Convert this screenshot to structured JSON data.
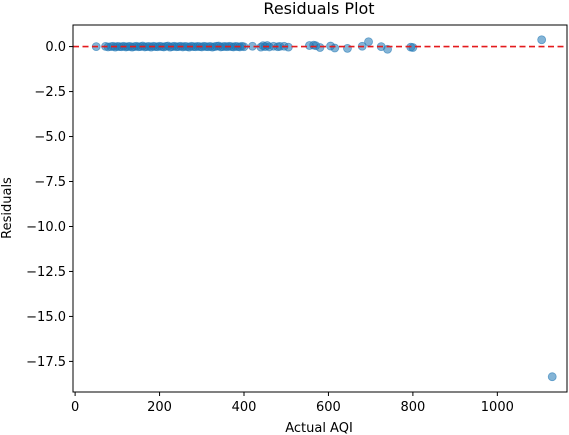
{
  "chart_data": {
    "type": "scatter",
    "title": "Residuals Plot",
    "xlabel": "Actual AQI",
    "ylabel": "Residuals",
    "xlim": [
      -5,
      1165
    ],
    "ylim": [
      -19.2,
      1.2
    ],
    "x_ticks": [
      {
        "value": 0,
        "label": "0"
      },
      {
        "value": 200,
        "label": "200"
      },
      {
        "value": 400,
        "label": "400"
      },
      {
        "value": 600,
        "label": "600"
      },
      {
        "value": 800,
        "label": "800"
      },
      {
        "value": 1000,
        "label": "1000"
      }
    ],
    "y_ticks": [
      {
        "value": 0,
        "label": "0.0"
      },
      {
        "value": -2.5,
        "label": "−2.5"
      },
      {
        "value": -5,
        "label": "−5.0"
      },
      {
        "value": -7.5,
        "label": "−7.5"
      },
      {
        "value": -10,
        "label": "−10.0"
      },
      {
        "value": -12.5,
        "label": "−12.5"
      },
      {
        "value": -15,
        "label": "−15.0"
      },
      {
        "value": -17.5,
        "label": "−17.5"
      }
    ],
    "reference_line": {
      "y": 0,
      "color": "#e41a1c",
      "style": "dashed"
    },
    "grid": false,
    "point_color": "#1f77b4",
    "points": [
      [
        50,
        0.0
      ],
      [
        72,
        0.01
      ],
      [
        78,
        -0.02
      ],
      [
        85,
        0.0
      ],
      [
        90,
        0.02
      ],
      [
        95,
        -0.03
      ],
      [
        100,
        0.01
      ],
      [
        105,
        0.0
      ],
      [
        110,
        -0.01
      ],
      [
        115,
        0.02
      ],
      [
        120,
        -0.02
      ],
      [
        125,
        0.0
      ],
      [
        130,
        0.01
      ],
      [
        135,
        -0.03
      ],
      [
        140,
        0.0
      ],
      [
        145,
        0.02
      ],
      [
        150,
        -0.01
      ],
      [
        155,
        0.0
      ],
      [
        160,
        0.03
      ],
      [
        165,
        -0.02
      ],
      [
        170,
        0.0
      ],
      [
        175,
        0.01
      ],
      [
        180,
        -0.03
      ],
      [
        185,
        0.02
      ],
      [
        190,
        0.0
      ],
      [
        195,
        -0.01
      ],
      [
        200,
        0.02
      ],
      [
        205,
        0.0
      ],
      [
        210,
        -0.02
      ],
      [
        215,
        0.01
      ],
      [
        220,
        0.03
      ],
      [
        225,
        -0.03
      ],
      [
        230,
        0.0
      ],
      [
        235,
        0.02
      ],
      [
        240,
        -0.01
      ],
      [
        245,
        0.0
      ],
      [
        250,
        0.02
      ],
      [
        255,
        -0.02
      ],
      [
        260,
        0.01
      ],
      [
        265,
        0.0
      ],
      [
        270,
        -0.03
      ],
      [
        275,
        0.02
      ],
      [
        280,
        0.0
      ],
      [
        285,
        -0.01
      ],
      [
        290,
        0.01
      ],
      [
        295,
        0.0
      ],
      [
        300,
        -0.02
      ],
      [
        305,
        0.02
      ],
      [
        310,
        0.0
      ],
      [
        315,
        -0.01
      ],
      [
        320,
        0.01
      ],
      [
        325,
        -0.03
      ],
      [
        330,
        0.0
      ],
      [
        335,
        0.02
      ],
      [
        340,
        0.03
      ],
      [
        345,
        -0.02
      ],
      [
        350,
        0.0
      ],
      [
        355,
        0.01
      ],
      [
        360,
        -0.01
      ],
      [
        365,
        0.02
      ],
      [
        370,
        0.0
      ],
      [
        375,
        -0.02
      ],
      [
        380,
        0.01
      ],
      [
        385,
        0.0
      ],
      [
        390,
        -0.02
      ],
      [
        395,
        0.02
      ],
      [
        400,
        -0.01
      ],
      [
        420,
        0.02
      ],
      [
        440,
        -0.03
      ],
      [
        445,
        0.05
      ],
      [
        450,
        0.0
      ],
      [
        455,
        0.06
      ],
      [
        460,
        -0.02
      ],
      [
        470,
        0.02
      ],
      [
        480,
        -0.01
      ],
      [
        485,
        0.01
      ],
      [
        495,
        0.02
      ],
      [
        505,
        -0.03
      ],
      [
        555,
        0.06
      ],
      [
        565,
        0.08
      ],
      [
        570,
        0.05
      ],
      [
        580,
        -0.05
      ],
      [
        605,
        0.03
      ],
      [
        615,
        -0.08
      ],
      [
        645,
        -0.1
      ],
      [
        680,
        0.02
      ],
      [
        695,
        0.27
      ],
      [
        725,
        0.0
      ],
      [
        740,
        -0.15
      ],
      [
        795,
        -0.03
      ],
      [
        800,
        -0.05
      ],
      [
        1105,
        0.38
      ],
      [
        1130,
        -18.35
      ]
    ]
  }
}
